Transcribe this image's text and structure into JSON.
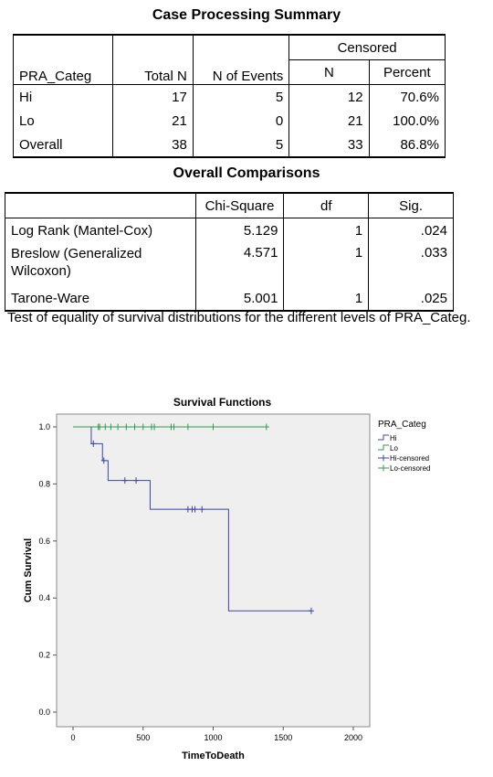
{
  "case_summary": {
    "title": "Case Processing Summary",
    "headers": {
      "group": "PRA_Categ",
      "total": "Total N",
      "events": "N of Events",
      "censored": "Censored",
      "cens_n": "N",
      "cens_pct": "Percent"
    },
    "rows": [
      {
        "label": "Hi",
        "total": "17",
        "events": "5",
        "cens_n": "12",
        "cens_pct": "70.6%"
      },
      {
        "label": "Lo",
        "total": "21",
        "events": "0",
        "cens_n": "21",
        "cens_pct": "100.0%"
      },
      {
        "label": "Overall",
        "total": "38",
        "events": "5",
        "cens_n": "33",
        "cens_pct": "86.8%"
      }
    ]
  },
  "comparisons": {
    "title": "Overall Comparisons",
    "headers": {
      "chi": "Chi-Square",
      "df": "df",
      "sig": "Sig."
    },
    "rows": [
      {
        "label": "Log Rank (Mantel-Cox)",
        "chi": "5.129",
        "df": "1",
        "sig": ".024"
      },
      {
        "label": "Breslow (Generalized Wilcoxon)",
        "chi": "4.571",
        "df": "1",
        "sig": ".033"
      },
      {
        "label": "Tarone-Ware",
        "chi": "5.001",
        "df": "1",
        "sig": ".025"
      }
    ],
    "note": "Test of equality of survival distributions for the different levels of PRA_Categ."
  },
  "chart_data": {
    "type": "line",
    "title": "Survival Functions",
    "xlabel": "TimeToDeath",
    "ylabel": "Cum Survival",
    "xlim": [
      0,
      2000
    ],
    "ylim": [
      0,
      1.0
    ],
    "xticks": [
      "0",
      "500",
      "1000",
      "1500",
      "2000"
    ],
    "xtick_values": [
      0,
      500,
      1000,
      1500,
      2000
    ],
    "yticks": [
      "0.0",
      "0.2",
      "0.4",
      "0.6",
      "0.8",
      "1.0"
    ],
    "ytick_values": [
      0,
      0.2,
      0.4,
      0.6,
      0.8,
      1.0
    ],
    "grid": false,
    "plot_background": "#efefef",
    "legend": {
      "title": "PRA_Categ",
      "placement": "right",
      "entries": [
        "Hi",
        "Lo",
        "Hi-censored",
        "Lo-censored"
      ]
    },
    "series": [
      {
        "name": "Hi",
        "color": "#3a46a8",
        "style": "step",
        "x": [
          0,
          130,
          210,
          250,
          550,
          1110,
          1700
        ],
        "y": [
          1.0,
          0.941,
          0.882,
          0.812,
          0.711,
          0.355,
          0.355
        ]
      },
      {
        "name": "Lo",
        "color": "#2e9b4a",
        "style": "step",
        "x": [
          0,
          1380
        ],
        "y": [
          1.0,
          1.0
        ]
      }
    ],
    "censored": [
      {
        "name": "Hi-censored",
        "color": "#3a46a8",
        "points": [
          [
            145,
            0.941
          ],
          [
            220,
            0.882
          ],
          [
            370,
            0.812
          ],
          [
            450,
            0.812
          ],
          [
            820,
            0.711
          ],
          [
            850,
            0.711
          ],
          [
            870,
            0.711
          ],
          [
            920,
            0.711
          ],
          [
            1700,
            0.355
          ]
        ]
      },
      {
        "name": "Lo-censored",
        "color": "#2e9b4a",
        "points": [
          [
            180,
            1.0
          ],
          [
            190,
            1.0
          ],
          [
            230,
            1.0
          ],
          [
            270,
            1.0
          ],
          [
            320,
            1.0
          ],
          [
            380,
            1.0
          ],
          [
            440,
            1.0
          ],
          [
            500,
            1.0
          ],
          [
            560,
            1.0
          ],
          [
            580,
            1.0
          ],
          [
            700,
            1.0
          ],
          [
            720,
            1.0
          ],
          [
            820,
            1.0
          ],
          [
            1000,
            1.0
          ],
          [
            1380,
            1.0
          ]
        ]
      }
    ]
  }
}
